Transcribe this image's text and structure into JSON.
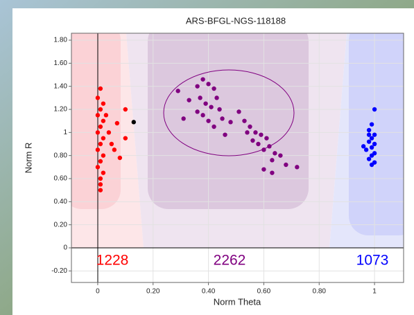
{
  "chart_data": {
    "type": "scatter",
    "title": "ARS-BFGL-NGS-118188",
    "x_label": "Norm Theta",
    "y_label": "Norm R",
    "xlim": [
      -0.095,
      1.105
    ],
    "ylim": [
      -0.3,
      1.86
    ],
    "grid": true,
    "xticks": [
      0,
      {
        "value": 0.2,
        "label": "0.20"
      },
      {
        "value": 0.4,
        "label": "0.40"
      },
      {
        "value": 0.6,
        "label": "0.60"
      },
      {
        "value": 0.8,
        "label": "0.80"
      },
      1
    ],
    "yticks": [
      {
        "value": -0.2,
        "label": "-0.20"
      },
      0,
      {
        "value": 0.2,
        "label": "0.20"
      },
      {
        "value": 0.4,
        "label": "0.40"
      },
      {
        "value": 0.6,
        "label": "0.60"
      },
      {
        "value": 0.8,
        "label": "0.80"
      },
      1,
      {
        "value": 1.2,
        "label": "1.20"
      },
      {
        "value": 1.4,
        "label": "1.40"
      },
      {
        "value": 1.6,
        "label": "1.60"
      },
      {
        "value": 1.8,
        "label": "1.80"
      }
    ],
    "series": [
      {
        "color": "#ff0000",
        "count": 1228,
        "x": [
          0.01,
          0.0,
          0.02,
          0.01,
          0.0,
          0.02,
          0.01,
          0.0,
          0.02,
          0.01,
          0.0,
          0.02,
          0.01,
          0.0,
          0.02,
          0.01,
          0.01,
          0.01,
          0.03,
          0.04,
          0.05,
          0.06,
          0.08,
          0.1,
          0.1,
          0.07
        ],
        "values": [
          1.38,
          1.3,
          1.25,
          1.2,
          1.15,
          1.1,
          1.05,
          1.0,
          0.95,
          0.9,
          0.85,
          0.8,
          0.75,
          0.7,
          0.65,
          0.6,
          0.55,
          0.5,
          1.15,
          1.0,
          0.9,
          0.85,
          0.78,
          0.95,
          1.2,
          1.08
        ]
      },
      {
        "color": "#800080",
        "count": 2262,
        "x": [
          0.29,
          0.33,
          0.36,
          0.38,
          0.4,
          0.42,
          0.37,
          0.39,
          0.41,
          0.43,
          0.44,
          0.38,
          0.4,
          0.42,
          0.45,
          0.36,
          0.46,
          0.31,
          0.48,
          0.51,
          0.53,
          0.55,
          0.57,
          0.59,
          0.61,
          0.58,
          0.6,
          0.62,
          0.64,
          0.66,
          0.56,
          0.63,
          0.68,
          0.72,
          0.6,
          0.63,
          0.54
        ],
        "values": [
          1.36,
          1.28,
          1.4,
          1.46,
          1.42,
          1.38,
          1.3,
          1.25,
          1.22,
          1.3,
          1.2,
          1.15,
          1.1,
          1.05,
          1.12,
          1.18,
          0.98,
          1.12,
          1.09,
          1.18,
          1.1,
          1.05,
          1.0,
          0.98,
          0.95,
          0.9,
          0.85,
          0.88,
          0.82,
          0.8,
          0.93,
          0.76,
          0.72,
          0.7,
          0.68,
          0.65,
          1.0
        ]
      },
      {
        "color": "#0000ff",
        "count": 1073,
        "x": [
          0.99,
          0.98,
          1.0,
          0.99,
          0.98,
          1.0,
          0.99,
          0.97,
          1.0,
          0.99,
          0.98,
          1.0,
          0.99,
          0.96,
          1.0,
          0.98
        ],
        "values": [
          1.07,
          1.02,
          0.98,
          0.95,
          0.92,
          0.9,
          0.87,
          0.85,
          0.82,
          0.8,
          0.77,
          0.74,
          0.72,
          0.88,
          1.2,
          0.98
        ]
      },
      {
        "color": "#000000",
        "x": [
          0.13
        ],
        "values": [
          1.09
        ]
      }
    ]
  }
}
